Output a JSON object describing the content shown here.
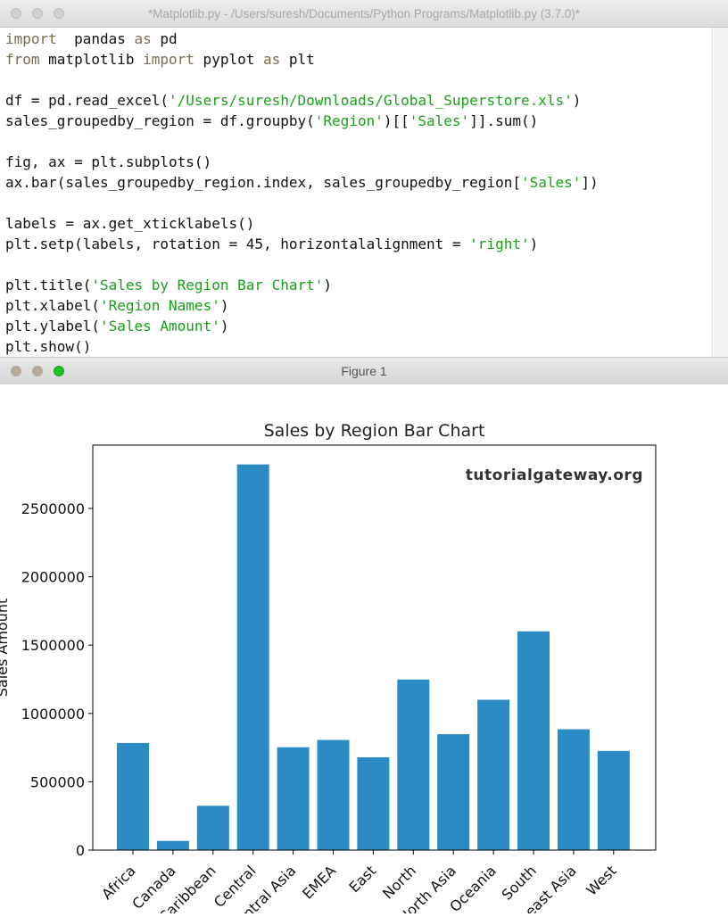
{
  "editor": {
    "title": "*Matplotlib.py - /Users/suresh/Documents/Python Programs/Matplotlib.py (3.7.0)*",
    "code_lines": [
      [
        [
          "kw",
          "import"
        ],
        [
          "",
          "  pandas "
        ],
        [
          "kw",
          "as"
        ],
        [
          "",
          " pd"
        ]
      ],
      [
        [
          "kw",
          "from"
        ],
        [
          "",
          " matplotlib "
        ],
        [
          "kw",
          "import"
        ],
        [
          "",
          " pyplot "
        ],
        [
          "kw",
          "as"
        ],
        [
          "",
          " plt"
        ]
      ],
      [],
      [
        [
          "",
          "df = pd.read_excel("
        ],
        [
          "str",
          "'/Users/suresh/Downloads/Global_Superstore.xls'"
        ],
        [
          "",
          ")"
        ]
      ],
      [
        [
          "",
          "sales_groupedby_region = df.groupby("
        ],
        [
          "str",
          "'Region'"
        ],
        [
          "",
          ")[["
        ],
        [
          "str",
          "'Sales'"
        ],
        [
          "",
          "]].sum()"
        ]
      ],
      [],
      [
        [
          "",
          "fig, ax = plt.subplots()"
        ]
      ],
      [
        [
          "",
          "ax.bar(sales_groupedby_region.index, sales_groupedby_region["
        ],
        [
          "str",
          "'Sales'"
        ],
        [
          "",
          "])"
        ]
      ],
      [],
      [
        [
          "",
          "labels = ax.get_xticklabels()"
        ]
      ],
      [
        [
          "",
          "plt.setp(labels, rotation = 45, horizontalalignment = "
        ],
        [
          "str",
          "'right'"
        ],
        [
          "",
          ")"
        ]
      ],
      [],
      [
        [
          "",
          "plt.title("
        ],
        [
          "str",
          "'Sales by Region Bar Chart'"
        ],
        [
          "",
          ")"
        ]
      ],
      [
        [
          "",
          "plt.xlabel("
        ],
        [
          "str",
          "'Region Names'"
        ],
        [
          "",
          ")"
        ]
      ],
      [
        [
          "",
          "plt.ylabel("
        ],
        [
          "str",
          "'Sales Amount'"
        ],
        [
          "",
          ")"
        ]
      ],
      [
        [
          "",
          "plt.show()"
        ]
      ]
    ]
  },
  "figure_window": {
    "title": "Figure 1"
  },
  "chart_data": {
    "type": "bar",
    "title": "Sales by Region Bar Chart",
    "xlabel": "",
    "ylabel": "Sales Amount",
    "watermark": "tutorialgateway.org",
    "categories": [
      "Africa",
      "Canada",
      "Caribbean",
      "Central",
      "Central Asia",
      "EMEA",
      "East",
      "North",
      "North Asia",
      "Oceania",
      "South",
      "Southeast Asia",
      "West"
    ],
    "values": [
      783773,
      66928,
      324281,
      2822303,
      752827,
      806162,
      678781,
      1248166,
      848310,
      1100185,
      1600907,
      884423,
      725458
    ],
    "yticks": [
      0,
      500000,
      1000000,
      1500000,
      2000000,
      2500000
    ],
    "ylim": [
      0,
      2963418
    ],
    "bar_color": "#2b8cc4",
    "grid": false
  }
}
